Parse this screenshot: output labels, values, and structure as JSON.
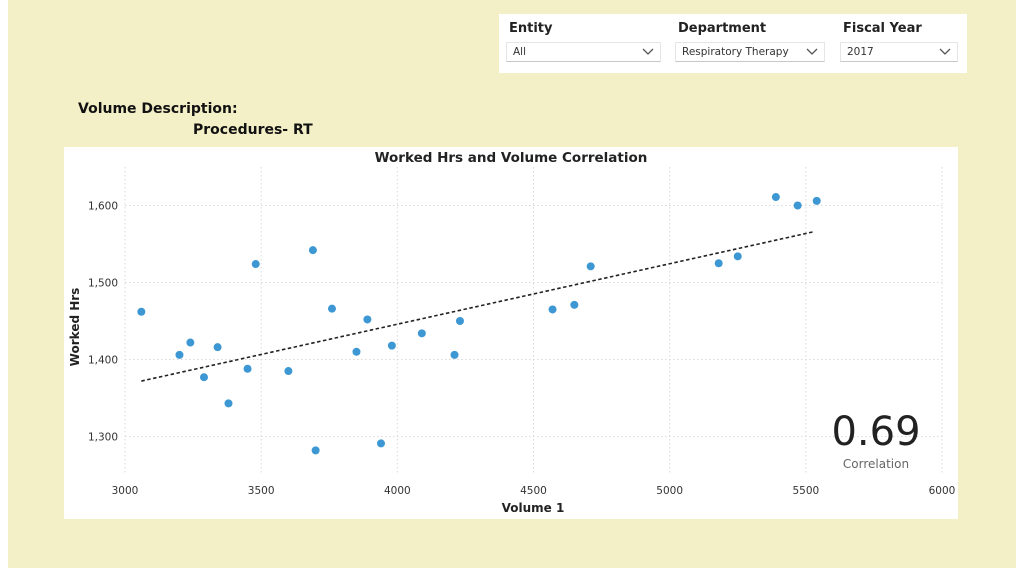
{
  "filters": {
    "entity": {
      "title": "Entity",
      "value": "All"
    },
    "department": {
      "title": "Department",
      "value": "Respiratory Therapy"
    },
    "fiscal_year": {
      "title": "Fiscal Year",
      "value": "2017"
    }
  },
  "volume_description": {
    "label": "Volume Description:",
    "value": "Procedures- RT"
  },
  "correlation": {
    "value": "0.69",
    "label": "Correlation"
  },
  "chart_data": {
    "type": "scatter",
    "title": "Worked Hrs and Volume Correlation",
    "xlabel": "Volume 1",
    "ylabel": "Worked Hrs",
    "xlim": [
      3000,
      6000
    ],
    "ylim": [
      1250,
      1650
    ],
    "xticks": [
      3000,
      3500,
      4000,
      4500,
      5000,
      5500,
      6000
    ],
    "xtick_labels": [
      "3000",
      "3500",
      "4000",
      "4500",
      "5000",
      "5500",
      "6000"
    ],
    "yticks": [
      1300,
      1400,
      1500,
      1600
    ],
    "ytick_labels": [
      "1,300",
      "1,400",
      "1,500",
      "1,600"
    ],
    "grid": true,
    "point_color": "#3c97d3",
    "trendline": {
      "x": [
        3060,
        5530
      ],
      "y": [
        1372,
        1566
      ],
      "style": "dashed"
    },
    "points": [
      {
        "x": 3060,
        "y": 1462
      },
      {
        "x": 3200,
        "y": 1406
      },
      {
        "x": 3240,
        "y": 1422
      },
      {
        "x": 3290,
        "y": 1377
      },
      {
        "x": 3340,
        "y": 1416
      },
      {
        "x": 3380,
        "y": 1343
      },
      {
        "x": 3450,
        "y": 1388
      },
      {
        "x": 3480,
        "y": 1524
      },
      {
        "x": 3600,
        "y": 1385
      },
      {
        "x": 3690,
        "y": 1542
      },
      {
        "x": 3700,
        "y": 1282
      },
      {
        "x": 3760,
        "y": 1466
      },
      {
        "x": 3850,
        "y": 1410
      },
      {
        "x": 3890,
        "y": 1452
      },
      {
        "x": 3940,
        "y": 1291
      },
      {
        "x": 3980,
        "y": 1418
      },
      {
        "x": 4090,
        "y": 1434
      },
      {
        "x": 4210,
        "y": 1406
      },
      {
        "x": 4230,
        "y": 1450
      },
      {
        "x": 4570,
        "y": 1465
      },
      {
        "x": 4650,
        "y": 1471
      },
      {
        "x": 4710,
        "y": 1521
      },
      {
        "x": 5180,
        "y": 1525
      },
      {
        "x": 5250,
        "y": 1534
      },
      {
        "x": 5390,
        "y": 1611
      },
      {
        "x": 5470,
        "y": 1600
      },
      {
        "x": 5540,
        "y": 1606
      }
    ]
  }
}
